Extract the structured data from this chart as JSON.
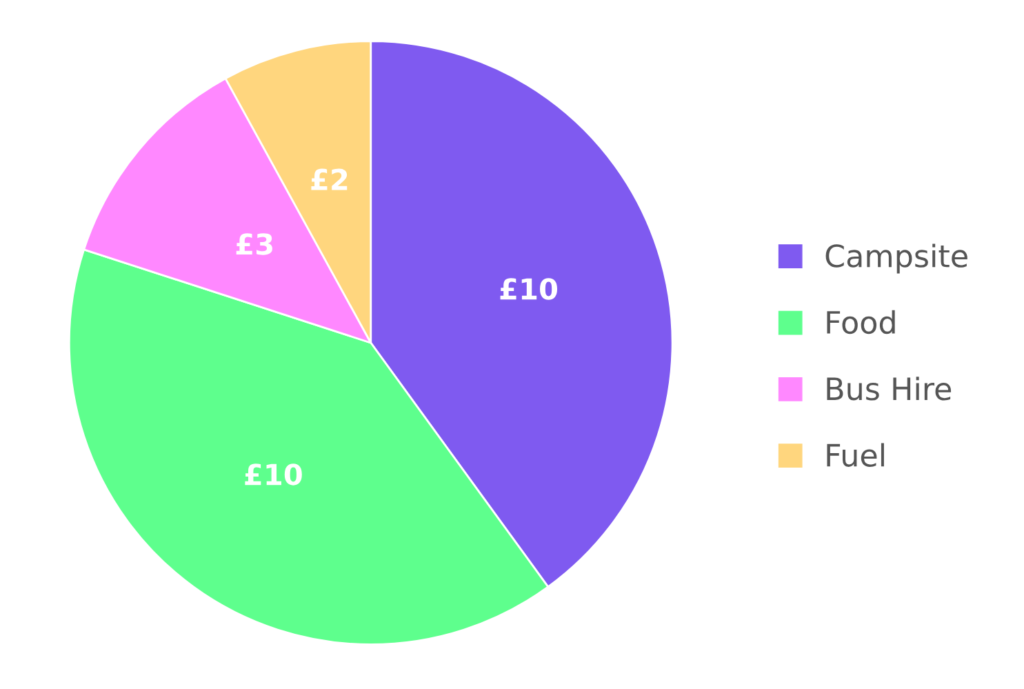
{
  "chart_data": {
    "type": "pie",
    "categories": [
      "Campsite",
      "Food",
      "Bus Hire",
      "Fuel"
    ],
    "values": [
      10,
      10,
      3,
      2
    ],
    "colors": [
      "#7f5af0",
      "#5eff8d",
      "#ff88ff",
      "#ffd67e"
    ],
    "value_labels": [
      "£10",
      "£10",
      "£3",
      "£2"
    ],
    "legend": "right"
  }
}
